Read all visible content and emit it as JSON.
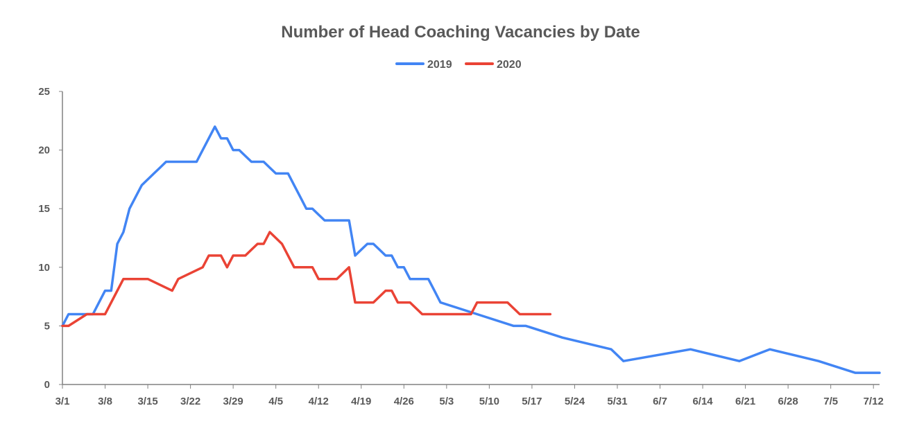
{
  "chart_data": {
    "type": "line",
    "title": "Number of Head Coaching Vacancies by Date",
    "xlabel": "",
    "ylabel": "",
    "x_range": [
      "3/1",
      "7/13"
    ],
    "ylim": [
      0,
      25
    ],
    "yticks": [
      "0",
      "5",
      "10",
      "15",
      "20",
      "25"
    ],
    "xticks": [
      "3/1",
      "3/8",
      "3/15",
      "3/22",
      "3/29",
      "4/5",
      "4/12",
      "4/19",
      "4/26",
      "5/3",
      "5/10",
      "5/17",
      "5/24",
      "5/31",
      "6/7",
      "6/14",
      "6/21",
      "6/28",
      "7/5",
      "7/12"
    ],
    "grid": false,
    "legend_position": "top-center",
    "series": [
      {
        "name": "2019",
        "color": "#4285F4",
        "points": [
          [
            "3/1",
            5
          ],
          [
            "3/2",
            6
          ],
          [
            "3/3",
            6
          ],
          [
            "3/4",
            6
          ],
          [
            "3/5",
            6
          ],
          [
            "3/6",
            6
          ],
          [
            "3/7",
            7
          ],
          [
            "3/8",
            8
          ],
          [
            "3/9",
            8
          ],
          [
            "3/10",
            12
          ],
          [
            "3/11",
            13
          ],
          [
            "3/12",
            15
          ],
          [
            "3/13",
            16
          ],
          [
            "3/14",
            17
          ],
          [
            "3/15",
            17.5
          ],
          [
            "3/16",
            18
          ],
          [
            "3/17",
            18.5
          ],
          [
            "3/18",
            19
          ],
          [
            "3/19",
            19
          ],
          [
            "3/20",
            19
          ],
          [
            "3/21",
            19
          ],
          [
            "3/22",
            19
          ],
          [
            "3/23",
            19
          ],
          [
            "3/24",
            20
          ],
          [
            "3/25",
            21
          ],
          [
            "3/26",
            22
          ],
          [
            "3/27",
            21
          ],
          [
            "3/28",
            21
          ],
          [
            "3/29",
            20
          ],
          [
            "3/30",
            20
          ],
          [
            "3/31",
            19.5
          ],
          [
            "4/1",
            19
          ],
          [
            "4/2",
            19
          ],
          [
            "4/3",
            19
          ],
          [
            "4/4",
            18.5
          ],
          [
            "4/5",
            18
          ],
          [
            "4/6",
            18
          ],
          [
            "4/7",
            18
          ],
          [
            "4/8",
            17
          ],
          [
            "4/9",
            16
          ],
          [
            "4/10",
            15
          ],
          [
            "4/11",
            15
          ],
          [
            "4/12",
            14.5
          ],
          [
            "4/13",
            14
          ],
          [
            "4/14",
            14
          ],
          [
            "4/15",
            14
          ],
          [
            "4/16",
            14
          ],
          [
            "4/17",
            14
          ],
          [
            "4/18",
            11
          ],
          [
            "4/19",
            11.5
          ],
          [
            "4/20",
            12
          ],
          [
            "4/21",
            12
          ],
          [
            "4/22",
            11.5
          ],
          [
            "4/23",
            11
          ],
          [
            "4/24",
            11
          ],
          [
            "4/25",
            10
          ],
          [
            "4/26",
            10
          ],
          [
            "4/27",
            9
          ],
          [
            "4/28",
            9
          ],
          [
            "4/29",
            9
          ],
          [
            "4/30",
            9
          ],
          [
            "5/1",
            8
          ],
          [
            "5/2",
            7
          ],
          [
            "5/8",
            6
          ],
          [
            "5/14",
            5
          ],
          [
            "5/16",
            5
          ],
          [
            "5/22",
            4
          ],
          [
            "5/30",
            3
          ],
          [
            "6/1",
            2
          ],
          [
            "6/12",
            3
          ],
          [
            "6/20",
            2
          ],
          [
            "6/25",
            3
          ],
          [
            "7/3",
            2
          ],
          [
            "7/9",
            1
          ],
          [
            "7/13",
            1
          ]
        ]
      },
      {
        "name": "2020",
        "color": "#EA4335",
        "points": [
          [
            "3/1",
            5
          ],
          [
            "3/2",
            5
          ],
          [
            "3/5",
            6
          ],
          [
            "3/6",
            6
          ],
          [
            "3/7",
            6
          ],
          [
            "3/8",
            6
          ],
          [
            "3/9",
            7
          ],
          [
            "3/11",
            9
          ],
          [
            "3/15",
            9
          ],
          [
            "3/19",
            8
          ],
          [
            "3/20",
            9
          ],
          [
            "3/24",
            10
          ],
          [
            "3/25",
            11
          ],
          [
            "3/26",
            11
          ],
          [
            "3/27",
            11
          ],
          [
            "3/28",
            10
          ],
          [
            "3/29",
            11
          ],
          [
            "3/30",
            11
          ],
          [
            "3/31",
            11
          ],
          [
            "4/1",
            11.5
          ],
          [
            "4/2",
            12
          ],
          [
            "4/3",
            12
          ],
          [
            "4/4",
            13
          ],
          [
            "4/5",
            12.5
          ],
          [
            "4/6",
            12
          ],
          [
            "4/7",
            11
          ],
          [
            "4/8",
            10
          ],
          [
            "4/11",
            10
          ],
          [
            "4/12",
            9
          ],
          [
            "4/15",
            9
          ],
          [
            "4/17",
            10
          ],
          [
            "4/18",
            7
          ],
          [
            "4/21",
            7
          ],
          [
            "4/23",
            8
          ],
          [
            "4/24",
            8
          ],
          [
            "4/25",
            7
          ],
          [
            "4/27",
            7
          ],
          [
            "4/29",
            6
          ],
          [
            "5/7",
            6
          ],
          [
            "5/8",
            7
          ],
          [
            "5/13",
            7
          ],
          [
            "5/15",
            6
          ],
          [
            "5/20",
            6
          ]
        ]
      }
    ]
  }
}
